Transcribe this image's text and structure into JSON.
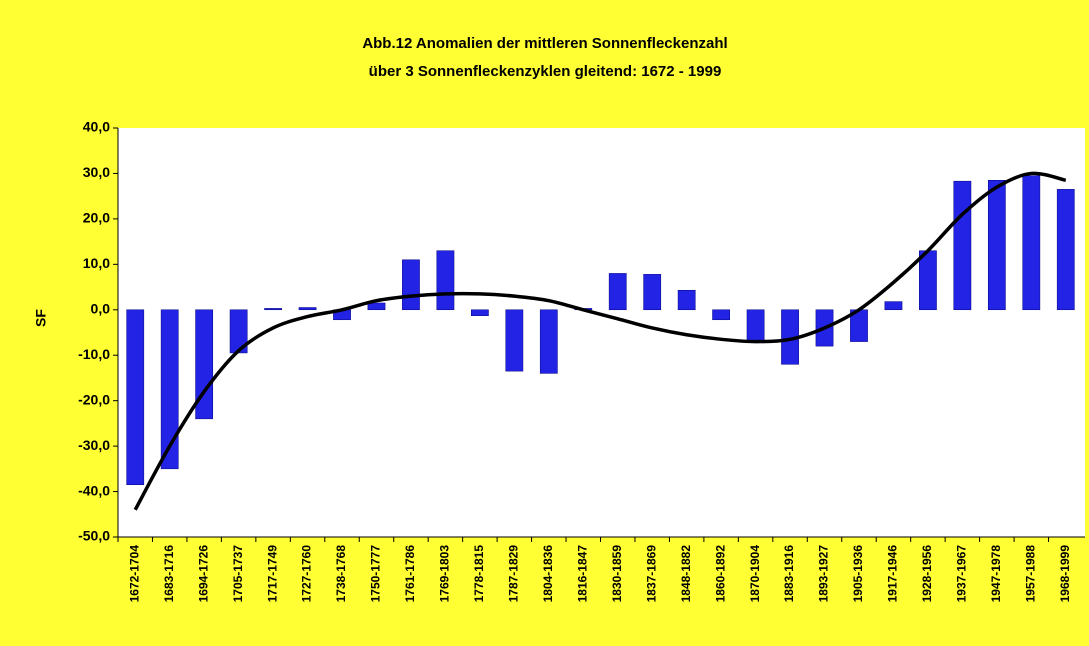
{
  "chart_data": {
    "type": "bar",
    "title": [
      "Abb.12  Anomalien der mittleren Sonnenfleckenzahl",
      "über 3 Sonnenfleckenzyklen gleitend: 1672 - 1999"
    ],
    "ylabel": "SF",
    "categories": [
      "1672-1704",
      "1683-1716",
      "1694-1726",
      "1705-1737",
      "1717-1749",
      "1727-1760",
      "1738-1768",
      "1750-1777",
      "1761-1786",
      "1769-1803",
      "1778-1815",
      "1787-1829",
      "1804-1836",
      "1816-1847",
      "1830-1859",
      "1837-1869",
      "1848-1882",
      "1860-1892",
      "1870-1904",
      "1883-1916",
      "1893-1927",
      "1905-1936",
      "1917-1946",
      "1928-1956",
      "1937-1967",
      "1947-1978",
      "1957-1988",
      "1968-1999"
    ],
    "values": [
      -38.5,
      -35,
      -24,
      -9.5,
      0.3,
      0.5,
      -2.2,
      1.5,
      11,
      13,
      -1.3,
      -13.5,
      -14,
      0.3,
      8,
      7.8,
      4.3,
      -2.2,
      -7,
      -12,
      -8,
      -7,
      1.8,
      13,
      28.3,
      28.5,
      29.5,
      26.5
    ],
    "color": "#2323e6",
    "trend_values": [
      -44,
      -30,
      -18,
      -9,
      -4,
      -1.5,
      0,
      2,
      3,
      3.5,
      3.5,
      3,
      2,
      0,
      -2,
      -4,
      -5.5,
      -6.5,
      -7,
      -6.5,
      -4,
      0,
      6,
      13,
      21,
      27,
      30,
      28.5
    ],
    "trend_color": "#000000",
    "ylim": [
      -50,
      40
    ],
    "yticks": [
      {
        "value": -50,
        "label": "-50,0"
      },
      {
        "value": -40,
        "label": "-40,0"
      },
      {
        "value": -30,
        "label": "-30,0"
      },
      {
        "value": -20,
        "label": "-20,0"
      },
      {
        "value": -10,
        "label": "-10,0"
      },
      {
        "value": 0,
        "label": "0,0"
      },
      {
        "value": 10,
        "label": "10,0"
      },
      {
        "value": 20,
        "label": "20,0"
      },
      {
        "value": 30,
        "label": "30,0"
      },
      {
        "value": 40,
        "label": "40,0"
      }
    ],
    "grid": false
  }
}
